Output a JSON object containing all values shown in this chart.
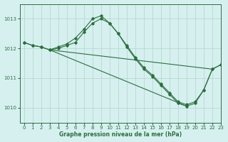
{
  "title": "Graphe pression niveau de la mer (hPa)",
  "background_color": "#d6f0f0",
  "grid_color": "#b8d8d0",
  "line_color": "#2d6e3e",
  "xlim": [
    -0.5,
    23
  ],
  "ylim": [
    1009.5,
    1013.5
  ],
  "yticks": [
    1010,
    1011,
    1012,
    1013
  ],
  "xticks": [
    0,
    1,
    2,
    3,
    4,
    5,
    6,
    7,
    8,
    9,
    10,
    11,
    12,
    13,
    14,
    15,
    16,
    17,
    18,
    19,
    20,
    21,
    22,
    23
  ],
  "series_with_markers": [
    {
      "x": [
        0,
        1,
        2,
        3,
        4,
        5,
        6,
        7,
        8,
        9,
        10,
        11,
        12,
        13,
        14,
        15,
        16,
        17,
        18,
        19,
        20,
        21,
        22,
        23
      ],
      "y": [
        1012.2,
        1012.1,
        1012.05,
        1011.95,
        1012.0,
        1012.1,
        1012.2,
        1012.55,
        1012.85,
        1013.0,
        1012.85,
        1012.5,
        1012.1,
        1011.7,
        1011.35,
        1011.1,
        1010.8,
        1010.5,
        1010.2,
        1010.1,
        1010.2,
        1010.6,
        1011.3,
        1011.45
      ]
    },
    {
      "x": [
        0,
        1,
        2,
        3,
        4,
        5,
        6,
        7,
        8,
        9,
        10,
        11,
        12,
        13,
        14,
        15,
        16,
        17,
        18,
        19,
        20,
        21,
        22,
        23
      ],
      "y": [
        1012.2,
        1012.1,
        1012.05,
        1011.95,
        1012.05,
        1012.15,
        1012.35,
        1012.65,
        1013.0,
        1013.1,
        1012.85,
        1012.5,
        1012.05,
        1011.65,
        1011.3,
        1011.05,
        1010.75,
        1010.45,
        1010.15,
        1010.05,
        1010.15,
        1010.6,
        1011.3,
        1011.45
      ]
    }
  ],
  "series_straight": [
    {
      "x": [
        3,
        22
      ],
      "y": [
        1011.95,
        1011.3
      ]
    },
    {
      "x": [
        3,
        19
      ],
      "y": [
        1011.95,
        1010.05
      ]
    }
  ]
}
